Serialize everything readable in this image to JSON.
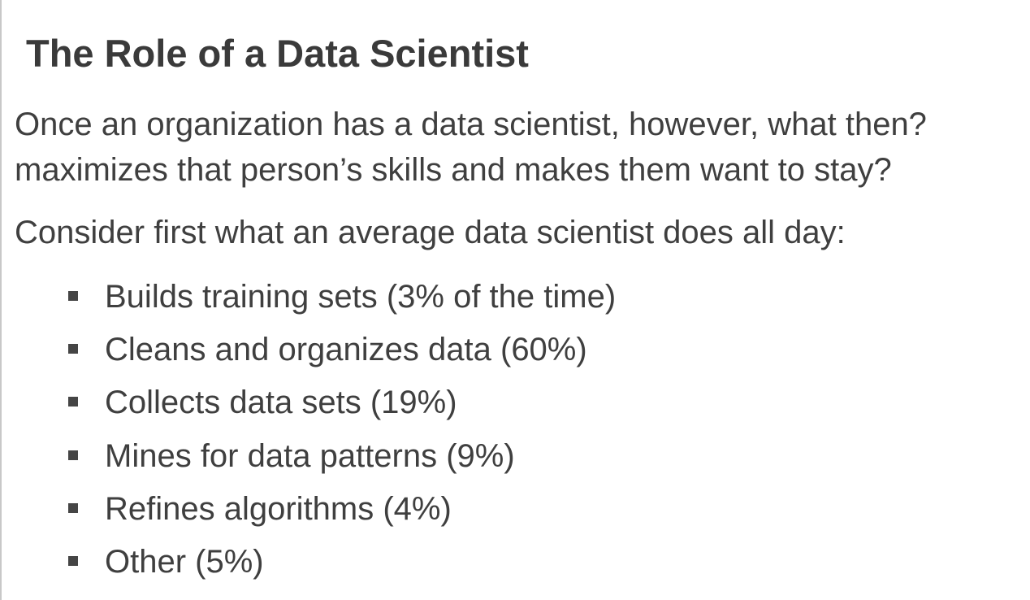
{
  "slide": {
    "title": "The Role of a Data Scientist",
    "paragraph_line_1": "Once an organization has a data scientist, however, what then?",
    "paragraph_line_2": "maximizes that person’s skills and makes them want to stay?",
    "intro": "Consider first what an average data scientist does all day:",
    "bullets": [
      "Builds training sets (3% of the time)",
      "Cleans and organizes data (60%)",
      "Collects data sets (19%)",
      "Mines for data patterns (9%)",
      "Refines algorithms (4%)",
      "Other (5%)"
    ],
    "text_color": "#3f3f3f",
    "bullet_icon": "square-bullet-icon"
  }
}
